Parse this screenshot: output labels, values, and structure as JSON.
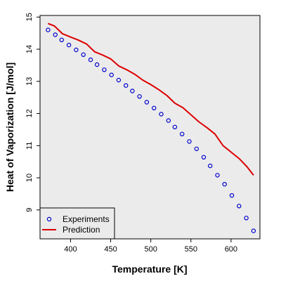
{
  "chart_data": {
    "type": "scatter",
    "title": "",
    "xlabel": "Temperature [K]",
    "ylabel": "Heat of Vaporization [J/mol]",
    "xlim": [
      362,
      636
    ],
    "ylim": [
      8.1,
      15.05
    ],
    "xticks": [
      400,
      450,
      500,
      550,
      600
    ],
    "yticks": [
      9,
      10,
      11,
      12,
      13,
      14,
      15
    ],
    "grid": false,
    "legend_position": "bottom-left",
    "background_color": "#ebebeb",
    "series": [
      {
        "name": "Experiments",
        "kind": "points",
        "marker": "open-circle",
        "color": "#0000cc",
        "x": [
          372,
          381,
          389,
          398,
          407,
          416,
          425,
          433,
          442,
          451,
          460,
          469,
          477,
          486,
          495,
          504,
          513,
          522,
          530,
          539,
          548,
          557,
          566,
          574,
          583,
          592,
          601,
          610,
          619,
          628
        ],
        "y": [
          14.6,
          14.45,
          14.29,
          14.13,
          13.98,
          13.83,
          13.67,
          13.52,
          13.36,
          13.2,
          13.04,
          12.87,
          12.7,
          12.53,
          12.35,
          12.17,
          11.98,
          11.78,
          11.58,
          11.36,
          11.13,
          10.9,
          10.64,
          10.37,
          10.08,
          9.8,
          9.45,
          9.12,
          8.75,
          8.35
        ]
      },
      {
        "name": "Prediction",
        "kind": "line",
        "color": "#dd0000",
        "x": [
          372,
          380,
          385,
          390,
          400,
          410,
          420,
          430,
          440,
          450,
          460,
          470,
          480,
          490,
          500,
          510,
          520,
          530,
          540,
          550,
          560,
          570,
          580,
          590,
          600,
          610,
          620,
          628
        ],
        "y": [
          14.8,
          14.72,
          14.6,
          14.48,
          14.38,
          14.28,
          14.16,
          13.92,
          13.82,
          13.7,
          13.48,
          13.36,
          13.22,
          13.04,
          12.9,
          12.74,
          12.56,
          12.32,
          12.18,
          11.96,
          11.74,
          11.56,
          11.36,
          11.0,
          10.8,
          10.6,
          10.34,
          10.08
        ]
      }
    ]
  }
}
